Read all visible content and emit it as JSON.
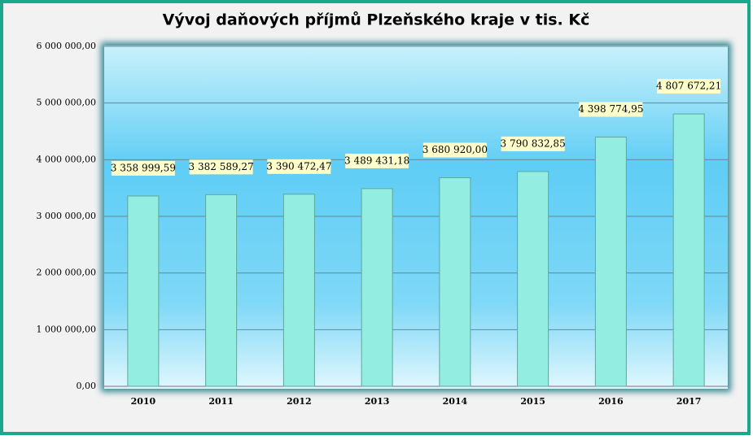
{
  "chart_data": {
    "type": "bar",
    "title": "Vývoj daňových příjmů Plzeňského kraje v tis. Kč",
    "categories": [
      "2010",
      "2011",
      "2012",
      "2013",
      "2014",
      "2015",
      "2016",
      "2017"
    ],
    "values": [
      3358999.59,
      3382589.27,
      3390472.47,
      3489431.18,
      3680920.0,
      3790832.85,
      4398774.95,
      4807672.21
    ],
    "value_labels": [
      "3 358 999,59",
      "3 382 589,27",
      "3 390 472,47",
      "3 489 431,18",
      "3 680 920,00",
      "3 790 832,85",
      "4 398 774,95",
      "4 807 672,21"
    ],
    "color": "#93ede0",
    "ylim": [
      0,
      6000000
    ],
    "yticks": [
      {
        "value": 0,
        "label": "0,00"
      },
      {
        "value": 1000000,
        "label": "1 000 000,00"
      },
      {
        "value": 2000000,
        "label": "2 000 000,00"
      },
      {
        "value": 3000000,
        "label": "3 000 000,00"
      },
      {
        "value": 4000000,
        "label": "4 000 000,00"
      },
      {
        "value": 5000000,
        "label": "5 000 000,00"
      },
      {
        "value": 6000000,
        "label": "6 000 000,00"
      }
    ],
    "grid": true
  }
}
